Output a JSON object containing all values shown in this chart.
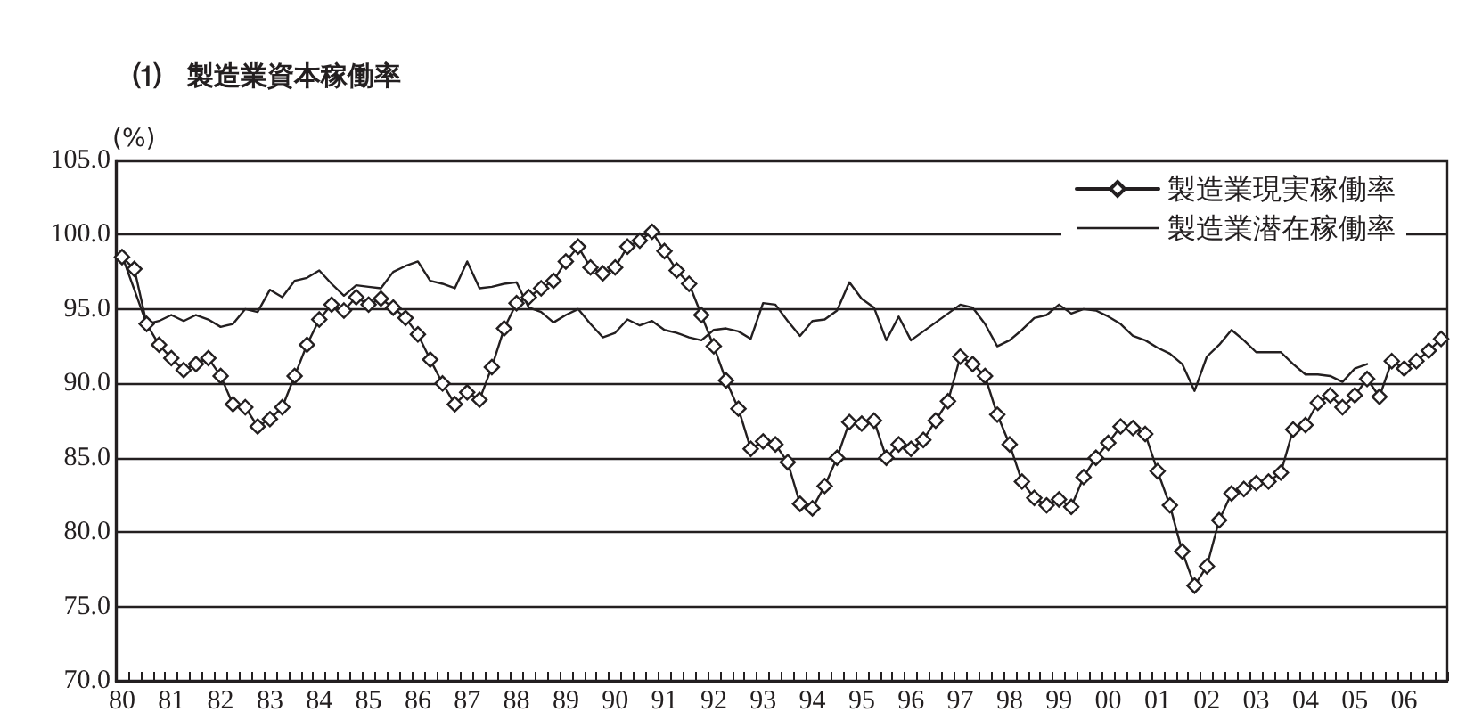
{
  "chart_data": {
    "type": "line",
    "title": "⑴　製造業資本稼働率",
    "ylabel": "(%)",
    "categories": [
      "80",
      null,
      null,
      null,
      "81",
      null,
      null,
      null,
      "82",
      null,
      null,
      null,
      "83",
      null,
      null,
      null,
      "84",
      null,
      null,
      null,
      "85",
      null,
      null,
      null,
      "86",
      null,
      null,
      null,
      "87",
      null,
      null,
      null,
      "88",
      null,
      null,
      null,
      "89",
      null,
      null,
      null,
      "90",
      null,
      null,
      null,
      "91",
      null,
      null,
      null,
      "92",
      null,
      null,
      null,
      "93",
      null,
      null,
      null,
      "94",
      null,
      null,
      null,
      "95",
      null,
      null,
      null,
      "96",
      null,
      null,
      null,
      "97",
      null,
      null,
      null,
      "98",
      null,
      null,
      null,
      "99",
      null,
      null,
      null,
      "00",
      null,
      null,
      null,
      "01",
      null,
      null,
      null,
      "02",
      null,
      null,
      null,
      "03",
      null,
      null,
      null,
      "04",
      null,
      null,
      null,
      "05",
      null,
      null,
      null,
      "06",
      null,
      null,
      null
    ],
    "series": [
      {
        "name": "製造業現実稼働率",
        "color": "#231f20",
        "marker": "diamond",
        "values": [
          98.5,
          97.7,
          94.0,
          92.6,
          91.7,
          90.9,
          91.3,
          91.7,
          90.5,
          88.6,
          88.4,
          87.1,
          87.6,
          88.4,
          90.5,
          92.6,
          94.3,
          95.3,
          94.9,
          95.8,
          95.3,
          95.7,
          95.1,
          94.4,
          93.3,
          91.6,
          90.0,
          88.6,
          89.4,
          88.9,
          91.1,
          93.7,
          95.4,
          95.8,
          96.4,
          96.9,
          98.2,
          99.2,
          97.8,
          97.4,
          97.8,
          99.2,
          99.6,
          100.2,
          98.9,
          97.6,
          96.7,
          94.6,
          92.5,
          90.2,
          88.3,
          85.6,
          86.1,
          85.9,
          84.7,
          81.9,
          81.6,
          83.1,
          85.0,
          87.4,
          87.3,
          87.5,
          85.0,
          85.9,
          85.6,
          86.2,
          87.5,
          88.8,
          91.8,
          91.3,
          90.5,
          87.9,
          85.9,
          83.4,
          82.3,
          81.8,
          82.2,
          81.7,
          83.7,
          85.0,
          86.0,
          87.1,
          87.0,
          86.6,
          84.1,
          81.8,
          78.7,
          76.4,
          77.7,
          80.8,
          82.6,
          82.9,
          83.3,
          83.4,
          84.0,
          86.9,
          87.2,
          88.7,
          89.2,
          88.4,
          89.2,
          90.3,
          89.1,
          91.5,
          91.0,
          91.5,
          92.2,
          93.0
        ]
      },
      {
        "name": "製造業潜在稼働率",
        "color": "#231f20",
        "marker": "none",
        "values": [
          98.6,
          96.3,
          94.0,
          94.2,
          94.6,
          94.2,
          94.6,
          94.3,
          93.8,
          94.0,
          95.0,
          94.8,
          96.3,
          95.8,
          96.9,
          97.1,
          97.6,
          96.7,
          95.9,
          96.6,
          96.5,
          96.4,
          97.5,
          97.9,
          98.2,
          96.9,
          96.7,
          96.4,
          98.2,
          96.4,
          96.5,
          96.7,
          96.8,
          95.1,
          94.8,
          94.1,
          94.6,
          95.0,
          94.0,
          93.1,
          93.4,
          94.3,
          93.9,
          94.2,
          93.6,
          93.4,
          93.1,
          92.9,
          93.6,
          93.7,
          93.5,
          93.0,
          95.4,
          95.3,
          94.2,
          93.2,
          94.2,
          94.3,
          94.9,
          96.8,
          95.7,
          95.1,
          92.9,
          94.5,
          92.9,
          93.5,
          94.1,
          94.7,
          95.3,
          95.1,
          94.0,
          92.5,
          92.9,
          93.6,
          94.4,
          94.6,
          95.3,
          94.7,
          95.0,
          94.9,
          94.5,
          94.0,
          93.2,
          92.9,
          92.4,
          92.0,
          91.3,
          89.5,
          91.8,
          92.6,
          93.6,
          92.9,
          92.1,
          92.1,
          92.1,
          91.3,
          90.6,
          90.6,
          90.5,
          90.1,
          91.0,
          91.3,
          null,
          null,
          null,
          null,
          null,
          null
        ]
      }
    ],
    "ylim": [
      70,
      105
    ],
    "yticks": [
      {
        "value": 70,
        "label": "70.0"
      },
      {
        "value": 75,
        "label": "75.0"
      },
      {
        "value": 80,
        "label": "80.0"
      },
      {
        "value": 85,
        "label": "85.0"
      },
      {
        "value": 90,
        "label": "90.0"
      },
      {
        "value": 95,
        "label": "95.0"
      },
      {
        "value": 100,
        "label": "100.0"
      },
      {
        "value": 105,
        "label": "105.0"
      }
    ],
    "grid": "y",
    "legend": "top right"
  }
}
